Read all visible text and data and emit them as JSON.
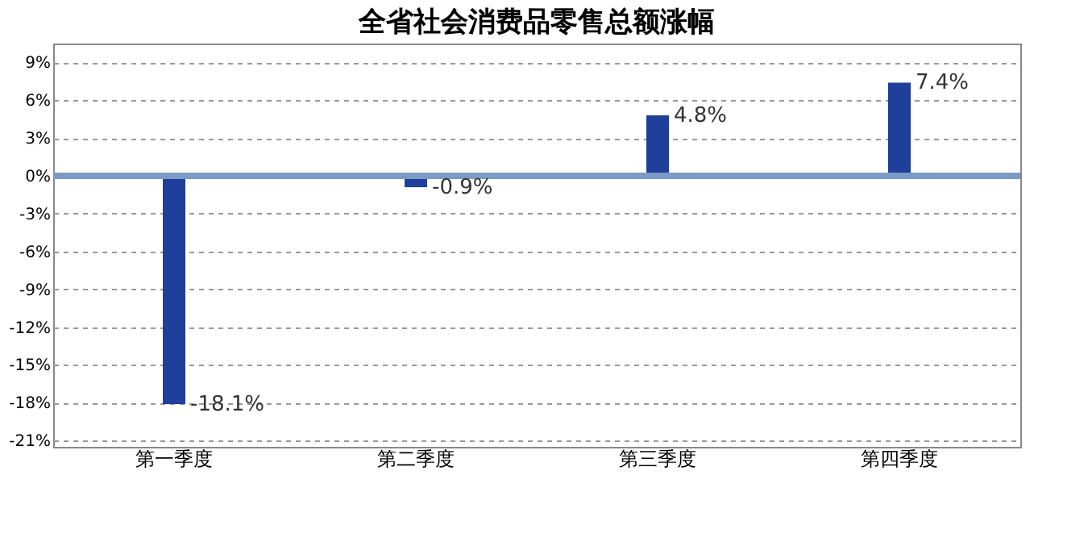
{
  "chart_data": {
    "type": "bar",
    "title": "全省社会消费品零售总额涨幅",
    "categories": [
      "第一季度",
      "第二季度",
      "第三季度",
      "第四季度"
    ],
    "series": [
      {
        "color": "#1f3f9a",
        "values": [
          -18.1,
          -0.9,
          4.8,
          7.4
        ]
      }
    ],
    "value_labels": [
      "-18.1%",
      "-0.9%",
      "4.8%",
      "7.4%"
    ],
    "ylim": [
      -21.5,
      10.5
    ],
    "yticks": [
      {
        "value": 9,
        "label": "9%"
      },
      {
        "value": 6,
        "label": "6%"
      },
      {
        "value": 3,
        "label": "3%"
      },
      {
        "value": 0,
        "label": "0%"
      },
      {
        "value": -3,
        "label": "-3%"
      },
      {
        "value": -6,
        "label": "-6%"
      },
      {
        "value": -9,
        "label": "-9%"
      },
      {
        "value": -12,
        "label": "-12%"
      },
      {
        "value": -15,
        "label": "-15%"
      },
      {
        "value": -18,
        "label": "-18%"
      },
      {
        "value": -21,
        "label": "-21%"
      }
    ],
    "ref_lines": [
      {
        "axis": "y",
        "value": 0,
        "color": "#7a9bc4"
      }
    ],
    "grid": "y"
  }
}
